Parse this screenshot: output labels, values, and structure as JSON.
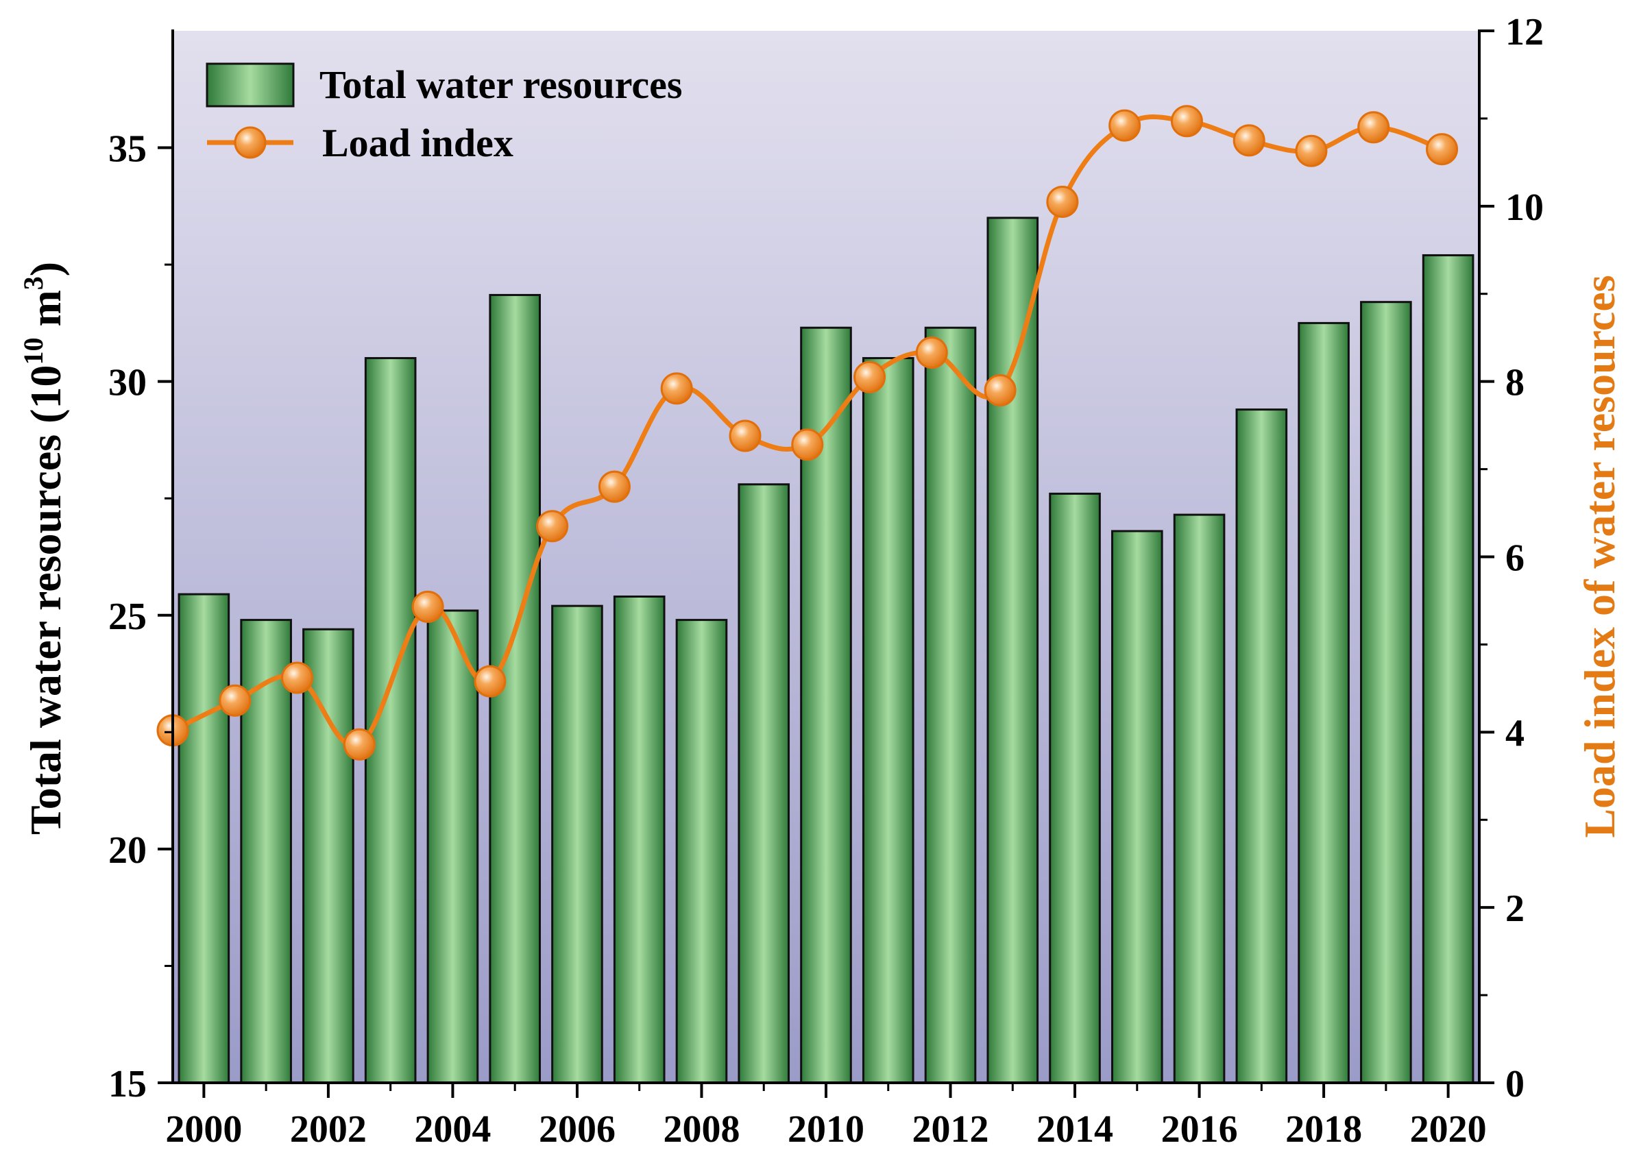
{
  "colors": {
    "bar_fill_light": "#a6dba0",
    "bar_fill_dark": "#2f7a3a",
    "bar_stroke": "#111111",
    "line": "#ed7d14",
    "bg_top": "#e2e0ee",
    "bg_bottom": "#9b9bc8",
    "axis": "#000000",
    "right_label": "#e37a14"
  },
  "chart_data": {
    "type": "bar+line",
    "title": "",
    "xlabel": "",
    "ylabel_left": "Total water resources (10",
    "ylabel_left_sup1": "10",
    "ylabel_left_mid": " m",
    "ylabel_left_sup2": "3",
    "ylabel_left_end": ")",
    "ylabel_right": "Load index of water resources",
    "ylim_left": [
      15,
      37.5
    ],
    "ylim_right": [
      0,
      12
    ],
    "yticks_left": [
      15,
      20,
      25,
      30,
      35
    ],
    "yticks_right": [
      0,
      2,
      4,
      6,
      8,
      10,
      12
    ],
    "xticks": [
      "2000",
      "2002",
      "2004",
      "2006",
      "2008",
      "2010",
      "2012",
      "2014",
      "2016",
      "2018",
      "2020"
    ],
    "xlim": [
      1999.5,
      2020.5
    ],
    "legend": {
      "position": "top-left",
      "bar_label": "Total water resources",
      "line_label": "Load index"
    },
    "series": [
      {
        "name": "Total water resources",
        "type": "bar",
        "axis": "left",
        "x": [
          2000,
          2001,
          2002,
          2003,
          2004,
          2005,
          2006,
          2007,
          2008,
          2009,
          2010,
          2011,
          2012,
          2013,
          2014,
          2015,
          2016,
          2017,
          2018,
          2019,
          2020
        ],
        "values": [
          25.45,
          24.9,
          24.7,
          30.5,
          25.1,
          31.85,
          25.2,
          25.4,
          24.9,
          27.8,
          31.15,
          30.5,
          31.15,
          33.5,
          27.6,
          26.8,
          27.15,
          29.4,
          31.25,
          31.7,
          32.7
        ]
      },
      {
        "name": "Load index",
        "type": "line",
        "axis": "right",
        "x": [
          1999.5,
          2000.5,
          2001.5,
          2002.5,
          2003.6,
          2004.6,
          2005.6,
          2006.6,
          2007.6,
          2008.7,
          2009.7,
          2010.7,
          2011.7,
          2012.8,
          2013.8,
          2014.8,
          2015.8,
          2016.8,
          2017.8,
          2018.8,
          2019.9
        ],
        "values": [
          4.02,
          4.36,
          4.62,
          3.86,
          5.43,
          4.58,
          6.35,
          6.8,
          7.92,
          7.38,
          7.28,
          8.05,
          8.33,
          7.9,
          10.05,
          10.92,
          10.97,
          10.75,
          10.63,
          10.9,
          10.65
        ]
      }
    ]
  }
}
